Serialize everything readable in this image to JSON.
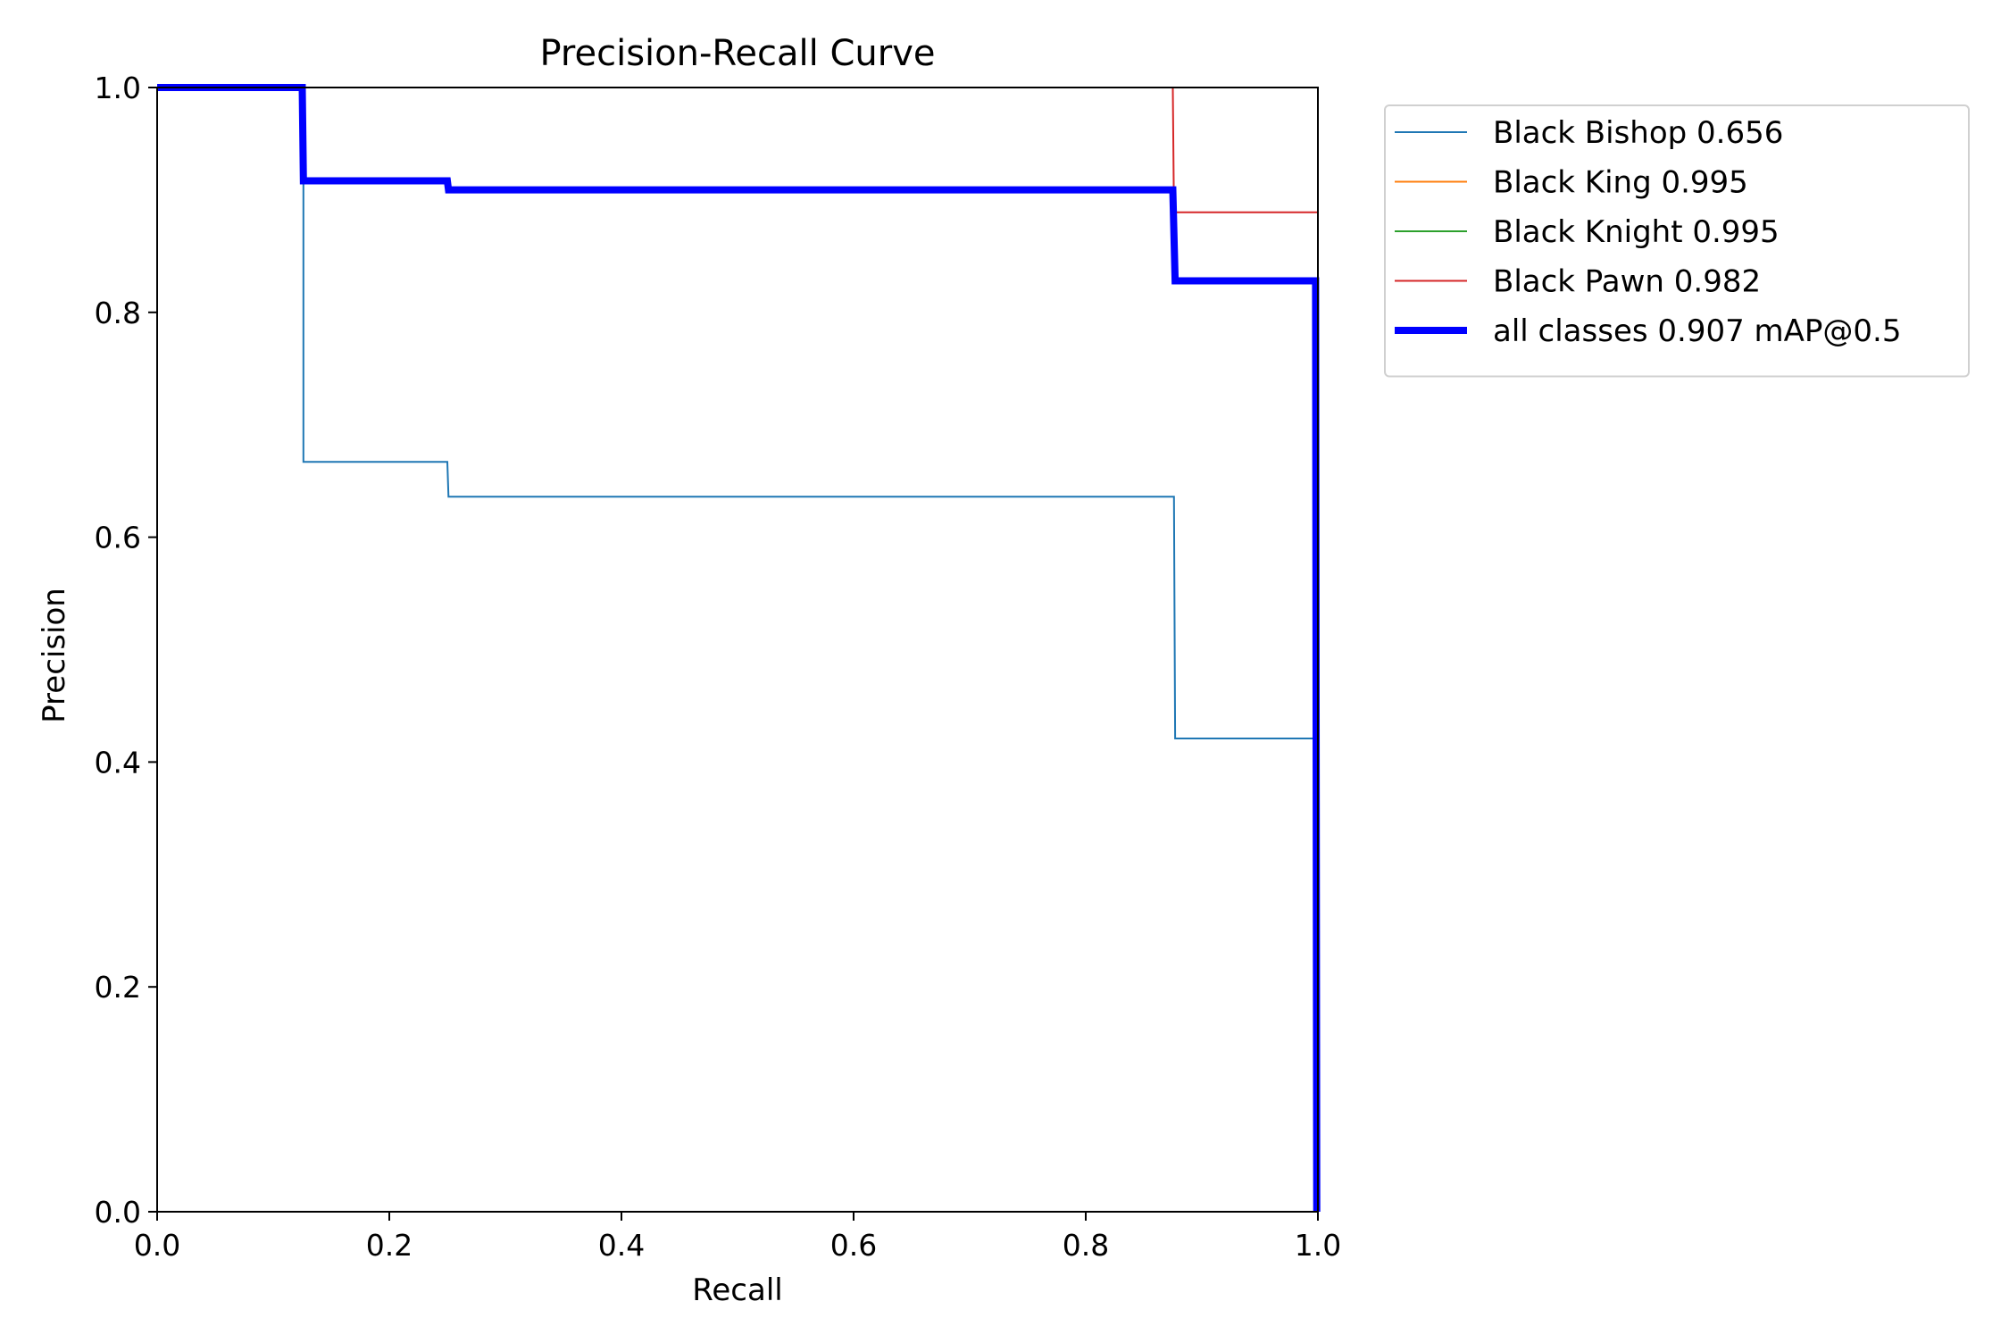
{
  "chart_data": {
    "type": "line",
    "title": "Precision-Recall Curve",
    "xlabel": "Recall",
    "ylabel": "Precision",
    "xlim": [
      0,
      1
    ],
    "ylim": [
      0,
      1
    ],
    "xticks": [
      "0.0",
      "0.2",
      "0.4",
      "0.6",
      "0.8",
      "1.0"
    ],
    "yticks": [
      "0.0",
      "0.2",
      "0.4",
      "0.6",
      "0.8",
      "1.0"
    ],
    "grid": false,
    "legend_position": "outside-top-right",
    "series": [
      {
        "name": "Black Bishop 0.656",
        "color": "#1f77b4",
        "emphasis": "thin",
        "x": [
          0,
          0.125,
          0.125,
          0.126,
          0.126,
          0.25,
          0.251,
          0.876,
          0.877,
          1.0,
          1.0
        ],
        "y": [
          1.0,
          1.0,
          0.917,
          0.917,
          0.667,
          0.667,
          0.636,
          0.636,
          0.421,
          0.421,
          0.0
        ]
      },
      {
        "name": "Black King 0.995",
        "color": "#ff7f0e",
        "emphasis": "thin",
        "x": [
          0,
          1.0,
          1.0
        ],
        "y": [
          1.0,
          1.0,
          0.0
        ]
      },
      {
        "name": "Black Knight 0.995",
        "color": "#2ca02c",
        "emphasis": "thin",
        "x": [
          0,
          1.0,
          1.0
        ],
        "y": [
          1.0,
          1.0,
          0.0
        ]
      },
      {
        "name": "Black Pawn 0.982",
        "color": "#d62728",
        "emphasis": "thin",
        "x": [
          0,
          0.875,
          0.876,
          1.0,
          1.0
        ],
        "y": [
          1.0,
          1.0,
          0.889,
          0.889,
          0.0
        ]
      },
      {
        "name": "all classes 0.907 mAP@0.5",
        "color": "#0000ff",
        "emphasis": "thick",
        "x": [
          0,
          0.125,
          0.126,
          0.25,
          0.251,
          0.875,
          0.877,
          0.998,
          0.999
        ],
        "y": [
          1.0,
          1.0,
          0.917,
          0.917,
          0.909,
          0.909,
          0.828,
          0.828,
          0.0
        ]
      }
    ]
  }
}
